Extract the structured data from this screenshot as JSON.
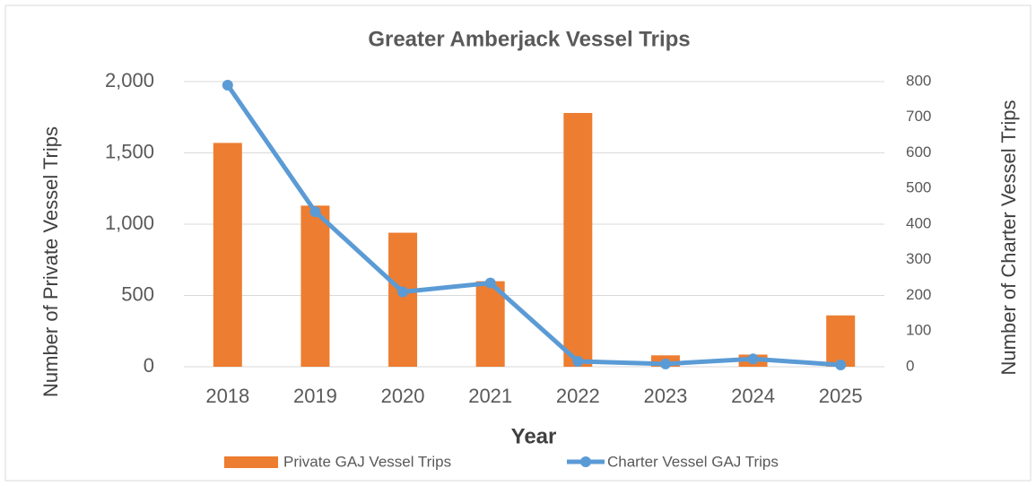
{
  "chart_data": {
    "type": "bar",
    "title": "Greater Amberjack Vessel Trips",
    "x_label": "Year",
    "y_label": "Number of Private Vessel Trips",
    "y2_label": "Number of Charter Vessel Trips",
    "categories": [
      "2018",
      "2019",
      "2020",
      "2021",
      "2022",
      "2023",
      "2024",
      "2025"
    ],
    "series": [
      {
        "name": "Private GAJ Vessel Trips",
        "type": "bar",
        "color": "#ed7d31",
        "values": [
          1570,
          1130,
          940,
          600,
          1780,
          80,
          85,
          360
        ]
      },
      {
        "name": "Charter Vessel GAJ Trips",
        "type": "line",
        "axis": "y2",
        "color": "#5b9bd5",
        "values": [
          790,
          435,
          210,
          235,
          15,
          8,
          22,
          5
        ]
      }
    ],
    "ylim": [
      0,
      2000
    ],
    "yticks": [
      0,
      500,
      {
        "value": 1000,
        "label": "1,000"
      },
      {
        "value": 1500,
        "label": "1,500"
      },
      {
        "value": 2000,
        "label": "2,000"
      }
    ],
    "y2lim": [
      0,
      800
    ],
    "y2ticks": [
      0,
      100,
      200,
      300,
      400,
      500,
      600,
      700,
      800
    ],
    "grid": true,
    "legend": "bottom"
  }
}
